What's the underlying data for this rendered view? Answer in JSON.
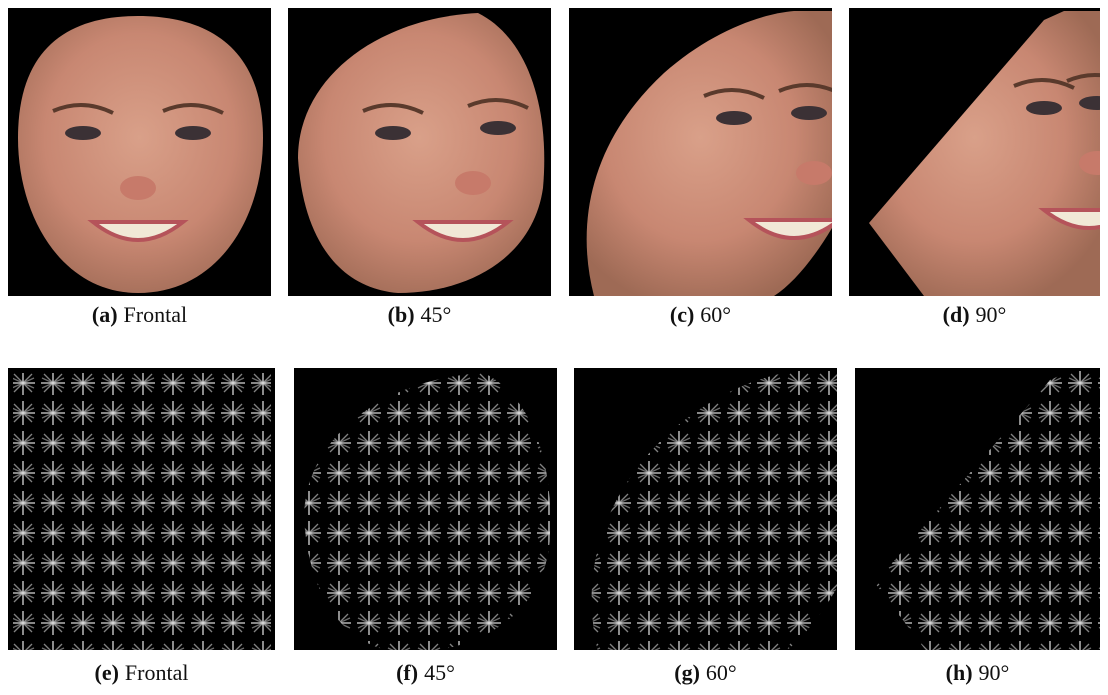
{
  "subfigures": [
    {
      "label": "(a)",
      "caption": "Frontal"
    },
    {
      "label": "(b)",
      "caption": "45°"
    },
    {
      "label": "(c)",
      "caption": "60°"
    },
    {
      "label": "(d)",
      "caption": "90°"
    },
    {
      "label": "(e)",
      "caption": "Frontal"
    },
    {
      "label": "(f)",
      "caption": "45°"
    },
    {
      "label": "(g)",
      "caption": "60°"
    },
    {
      "label": "(h)",
      "caption": "90°"
    }
  ]
}
